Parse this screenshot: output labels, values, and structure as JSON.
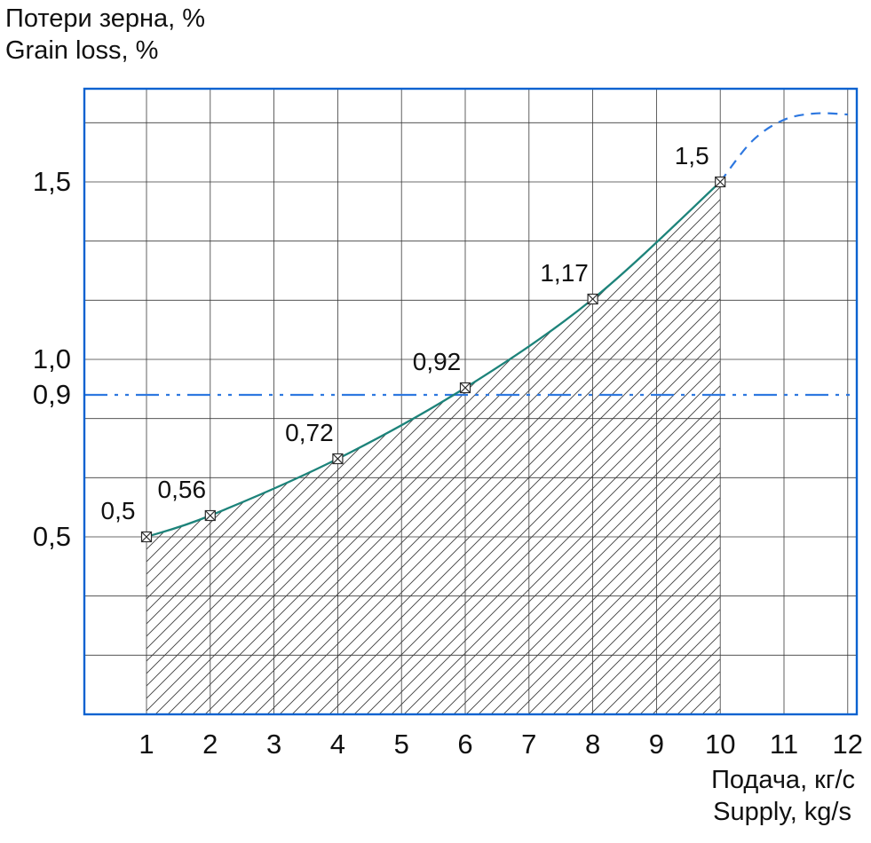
{
  "axis_titles": {
    "y1": "Потери зерна, %",
    "y2": "Grain loss, %",
    "x1": "Подача, кг/с",
    "x2": "Supply, kg/s"
  },
  "chart_data": {
    "type": "line",
    "title": "",
    "ylabel": "Потери зерна, % / Grain loss, %",
    "xlabel": "Подача, кг/с / Supply, kg/s",
    "xlim": [
      0,
      12.15
    ],
    "ylim": [
      0,
      1.76
    ],
    "series": [
      {
        "name": "grain-loss-curve",
        "x": [
          1,
          2,
          4,
          6,
          8,
          10
        ],
        "y": [
          0.5,
          0.56,
          0.72,
          0.92,
          1.17,
          1.5
        ],
        "labels": [
          "0,5",
          "0,56",
          "0,72",
          "0,92",
          "1,17",
          "1,5"
        ],
        "color": "#1d837a",
        "marker": "square-x",
        "area_hatched": true
      }
    ],
    "extension": {
      "name": "dashed-forecast",
      "x": [
        10,
        10.5,
        11,
        11.5,
        12
      ],
      "y": [
        1.5,
        1.615,
        1.675,
        1.693,
        1.69
      ],
      "style": "dashed",
      "color": "#2e78e0"
    },
    "reference_line": {
      "y": 0.9,
      "label": "0,9",
      "style": "dash-dot-dot",
      "color": "#2e78e0"
    },
    "x_ticks": [
      "1",
      "2",
      "3",
      "4",
      "5",
      "6",
      "7",
      "8",
      "9",
      "10",
      "11",
      "12"
    ],
    "x_tick_values": [
      1,
      2,
      3,
      4,
      5,
      6,
      7,
      8,
      9,
      10,
      11,
      12
    ],
    "y_ticks": [
      {
        "v": 0.5,
        "label": "0,5"
      },
      {
        "v": 0.9,
        "label": "0,9"
      },
      {
        "v": 1.0,
        "label": "1,0"
      },
      {
        "v": 1.5,
        "label": "1,5"
      }
    ],
    "grid": {
      "x_step": 1,
      "y_step": 0.166667,
      "color": "#3a3a3a",
      "on": true
    },
    "hatch_color": "#3f3f3f",
    "border_color": "#0a62d0",
    "text_color": "#111111",
    "legend": "none"
  }
}
